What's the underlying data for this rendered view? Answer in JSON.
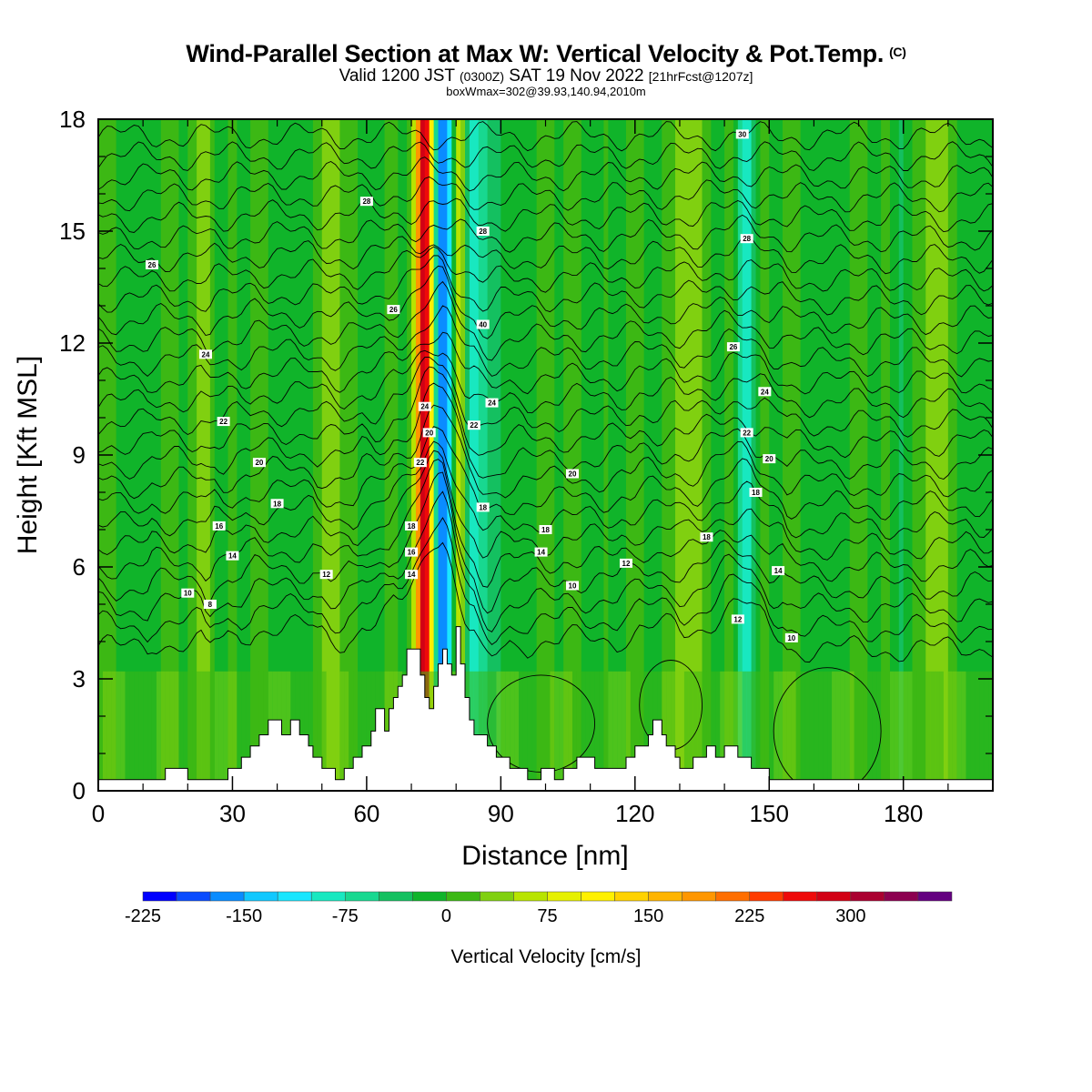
{
  "title": {
    "main": "Wind-Parallel Section at Max W: Vertical Velocity & Pot.Temp.",
    "copyright": "(C)",
    "valid_prefix": "Valid 1200 JST",
    "valid_utc": "(0300Z)",
    "valid_date": "SAT 19 Nov 2022",
    "forecast": "[21hrFcst@1207z]",
    "box": "boxWmax=302@39.93,140.94,2010m"
  },
  "chart_data": {
    "type": "heatmap",
    "xlabel": "Distance [nm]",
    "ylabel": "Height [Kft MSL]",
    "xlim": [
      0,
      200
    ],
    "ylim": [
      0,
      18
    ],
    "xticks": [
      0,
      30,
      60,
      90,
      120,
      150,
      180
    ],
    "yticks": [
      0,
      3,
      6,
      9,
      12,
      15,
      18
    ],
    "colorbar": {
      "title": "Vertical Velocity [cm/s]",
      "levels": [
        -225,
        -200,
        -175,
        -150,
        -125,
        -100,
        -75,
        -50,
        -25,
        0,
        25,
        50,
        75,
        100,
        125,
        150,
        175,
        200,
        225,
        250,
        275,
        300,
        325,
        350
      ],
      "tick_labels": [
        "-225",
        "-150",
        "-75",
        "0",
        "75",
        "150",
        "225",
        "300"
      ],
      "colors": [
        "#0000ff",
        "#0a4cff",
        "#0a8cff",
        "#12c8ff",
        "#1ae6ff",
        "#18e8c0",
        "#18d890",
        "#14c060",
        "#10b42a",
        "#3cb814",
        "#80d010",
        "#b8e400",
        "#e6f000",
        "#fff000",
        "#ffd200",
        "#ffb400",
        "#ff9600",
        "#ff6e00",
        "#ff3c00",
        "#ee0a0a",
        "#d20014",
        "#aa0030",
        "#8c0050",
        "#640080"
      ]
    },
    "updraft_columns": [
      {
        "x": 73,
        "w": 4,
        "value": 302
      },
      {
        "x": 81,
        "w": 3,
        "value": 140
      },
      {
        "x": 131,
        "w": 6,
        "value": 60
      },
      {
        "x": 24,
        "w": 5,
        "value": 40
      },
      {
        "x": 53,
        "w": 6,
        "value": 40
      },
      {
        "x": 187,
        "w": 5,
        "value": 40
      }
    ],
    "downdraft_columns": [
      {
        "x": 77,
        "w": 4,
        "value": -170
      },
      {
        "x": 84,
        "w": 8,
        "value": -100
      },
      {
        "x": 145,
        "w": 4,
        "value": -60
      }
    ],
    "theta_contour_labels": [
      {
        "x": 25,
        "y": 5.0,
        "text": "8"
      },
      {
        "x": 20,
        "y": 5.3,
        "text": "10"
      },
      {
        "x": 30,
        "y": 6.3,
        "text": "14"
      },
      {
        "x": 27,
        "y": 7.1,
        "text": "16"
      },
      {
        "x": 40,
        "y": 7.7,
        "text": "18"
      },
      {
        "x": 36,
        "y": 8.8,
        "text": "20"
      },
      {
        "x": 28,
        "y": 9.9,
        "text": "22"
      },
      {
        "x": 24,
        "y": 11.7,
        "text": "24"
      },
      {
        "x": 12,
        "y": 14.1,
        "text": "26"
      },
      {
        "x": 66,
        "y": 12.9,
        "text": "26"
      },
      {
        "x": 60,
        "y": 15.8,
        "text": "28"
      },
      {
        "x": 51,
        "y": 5.8,
        "text": "12"
      },
      {
        "x": 70,
        "y": 5.8,
        "text": "14"
      },
      {
        "x": 70,
        "y": 6.4,
        "text": "16"
      },
      {
        "x": 70,
        "y": 7.1,
        "text": "18"
      },
      {
        "x": 72,
        "y": 8.8,
        "text": "22"
      },
      {
        "x": 74,
        "y": 9.6,
        "text": "20"
      },
      {
        "x": 73,
        "y": 10.3,
        "text": "24"
      },
      {
        "x": 86,
        "y": 7.6,
        "text": "18"
      },
      {
        "x": 84,
        "y": 9.8,
        "text": "22"
      },
      {
        "x": 88,
        "y": 10.4,
        "text": "24"
      },
      {
        "x": 86,
        "y": 12.5,
        "text": "40"
      },
      {
        "x": 86,
        "y": 15.0,
        "text": "28"
      },
      {
        "x": 99,
        "y": 6.4,
        "text": "14"
      },
      {
        "x": 100,
        "y": 7.0,
        "text": "18"
      },
      {
        "x": 106,
        "y": 5.5,
        "text": "10"
      },
      {
        "x": 106,
        "y": 8.5,
        "text": "20"
      },
      {
        "x": 118,
        "y": 6.1,
        "text": "12"
      },
      {
        "x": 143,
        "y": 4.6,
        "text": "12"
      },
      {
        "x": 136,
        "y": 6.8,
        "text": "18"
      },
      {
        "x": 155,
        "y": 4.1,
        "text": "10"
      },
      {
        "x": 152,
        "y": 5.9,
        "text": "14"
      },
      {
        "x": 147,
        "y": 8.0,
        "text": "18"
      },
      {
        "x": 150,
        "y": 8.9,
        "text": "20"
      },
      {
        "x": 145,
        "y": 9.6,
        "text": "22"
      },
      {
        "x": 149,
        "y": 10.7,
        "text": "24"
      },
      {
        "x": 142,
        "y": 11.9,
        "text": "26"
      },
      {
        "x": 145,
        "y": 14.8,
        "text": "28"
      },
      {
        "x": 144,
        "y": 17.6,
        "text": "30"
      }
    ],
    "terrain": [
      [
        0,
        0.3
      ],
      [
        15,
        0.3
      ],
      [
        15,
        0.6
      ],
      [
        20,
        0.6
      ],
      [
        20,
        0.3
      ],
      [
        29,
        0.3
      ],
      [
        29,
        0.6
      ],
      [
        32,
        0.6
      ],
      [
        32,
        0.9
      ],
      [
        34,
        0.9
      ],
      [
        34,
        1.2
      ],
      [
        36,
        1.2
      ],
      [
        36,
        1.5
      ],
      [
        38,
        1.5
      ],
      [
        38,
        1.9
      ],
      [
        41,
        1.9
      ],
      [
        41,
        1.5
      ],
      [
        43,
        1.5
      ],
      [
        43,
        1.9
      ],
      [
        45,
        1.9
      ],
      [
        45,
        1.5
      ],
      [
        47,
        1.5
      ],
      [
        47,
        1.2
      ],
      [
        48,
        1.2
      ],
      [
        48,
        0.9
      ],
      [
        50,
        0.9
      ],
      [
        50,
        0.6
      ],
      [
        53,
        0.6
      ],
      [
        53,
        0.3
      ],
      [
        55,
        0.3
      ],
      [
        55,
        0.6
      ],
      [
        57,
        0.6
      ],
      [
        57,
        0.9
      ],
      [
        59,
        0.9
      ],
      [
        59,
        1.2
      ],
      [
        61,
        1.2
      ],
      [
        61,
        1.6
      ],
      [
        62,
        1.6
      ],
      [
        62,
        2.2
      ],
      [
        64,
        2.2
      ],
      [
        64,
        1.6
      ],
      [
        65,
        1.6
      ],
      [
        65,
        2.2
      ],
      [
        66,
        2.2
      ],
      [
        66,
        2.5
      ],
      [
        67,
        2.5
      ],
      [
        67,
        2.8
      ],
      [
        68,
        2.8
      ],
      [
        68,
        3.1
      ],
      [
        69,
        3.1
      ],
      [
        69,
        3.8
      ],
      [
        72,
        3.8
      ],
      [
        72,
        3.1
      ],
      [
        73,
        3.1
      ],
      [
        73,
        2.5
      ],
      [
        74,
        2.5
      ],
      [
        74,
        2.2
      ],
      [
        75,
        2.2
      ],
      [
        75,
        2.8
      ],
      [
        76,
        2.8
      ],
      [
        76,
        3.4
      ],
      [
        77,
        3.4
      ],
      [
        77,
        3.8
      ],
      [
        78,
        3.8
      ],
      [
        78,
        3.4
      ],
      [
        79,
        3.4
      ],
      [
        79,
        3.1
      ],
      [
        80,
        3.1
      ],
      [
        80,
        4.4
      ],
      [
        81,
        4.4
      ],
      [
        81,
        3.4
      ],
      [
        82,
        3.4
      ],
      [
        82,
        2.5
      ],
      [
        83,
        2.5
      ],
      [
        83,
        1.9
      ],
      [
        84,
        1.9
      ],
      [
        84,
        1.5
      ],
      [
        87,
        1.5
      ],
      [
        87,
        1.2
      ],
      [
        89,
        1.2
      ],
      [
        89,
        0.9
      ],
      [
        92,
        0.9
      ],
      [
        92,
        0.6
      ],
      [
        96,
        0.6
      ],
      [
        96,
        0.3
      ],
      [
        99,
        0.3
      ],
      [
        99,
        0.6
      ],
      [
        102,
        0.6
      ],
      [
        102,
        0.3
      ],
      [
        104,
        0.3
      ],
      [
        104,
        0.6
      ],
      [
        107,
        0.6
      ],
      [
        107,
        0.9
      ],
      [
        111,
        0.9
      ],
      [
        111,
        0.6
      ],
      [
        118,
        0.6
      ],
      [
        118,
        0.9
      ],
      [
        120,
        0.9
      ],
      [
        120,
        1.2
      ],
      [
        123,
        1.2
      ],
      [
        123,
        1.5
      ],
      [
        124,
        1.5
      ],
      [
        124,
        1.9
      ],
      [
        126,
        1.9
      ],
      [
        126,
        1.5
      ],
      [
        127,
        1.5
      ],
      [
        127,
        1.2
      ],
      [
        129,
        1.2
      ],
      [
        129,
        0.9
      ],
      [
        130,
        0.9
      ],
      [
        130,
        0.6
      ],
      [
        133,
        0.6
      ],
      [
        133,
        0.9
      ],
      [
        136,
        0.9
      ],
      [
        136,
        1.2
      ],
      [
        138,
        1.2
      ],
      [
        138,
        0.9
      ],
      [
        140,
        0.9
      ],
      [
        140,
        1.2
      ],
      [
        143,
        1.2
      ],
      [
        143,
        0.9
      ],
      [
        146,
        0.9
      ],
      [
        146,
        0.6
      ],
      [
        150,
        0.6
      ],
      [
        150,
        0.3
      ],
      [
        197,
        0.3
      ],
      [
        200,
        0.3
      ]
    ]
  }
}
